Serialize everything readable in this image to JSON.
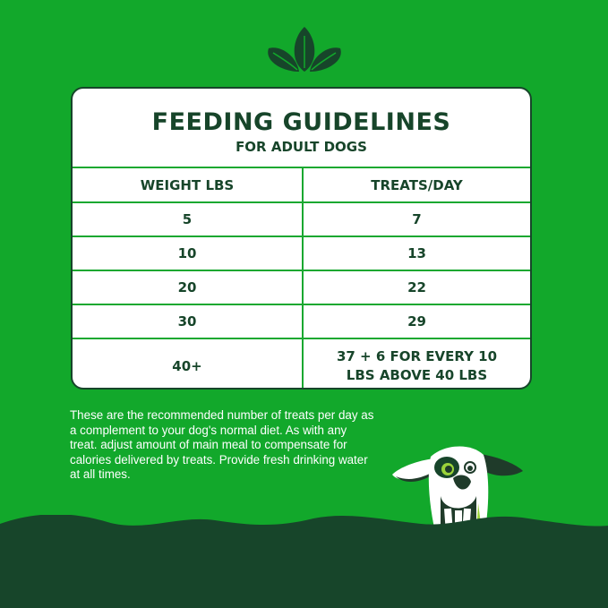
{
  "colors": {
    "background": "#12a82b",
    "dark_green": "#17452a",
    "line_green": "#1aa830",
    "card": "#ffffff"
  },
  "icons": {
    "top": "leaf-sprout-icon",
    "mascot": "dog-mascot-illustration"
  },
  "card": {
    "title": "FEEDING GUIDELINES",
    "subtitle": "FOR ADULT DOGS",
    "headers": [
      "WEIGHT LBS",
      "TREATS/DAY"
    ],
    "rows": [
      [
        "5",
        "7"
      ],
      [
        "10",
        "13"
      ],
      [
        "20",
        "22"
      ],
      [
        "30",
        "29"
      ],
      [
        "40+",
        "37 + 6 FOR EVERY 10 LBS ABOVE 40 LBS"
      ]
    ]
  },
  "note": "These are the recommended number of treats per day as a complement to your dog's normal diet. As with any treat. adjust amount of main meal to compensate for calories delivered by treats. Provide fresh drinking water at all times."
}
